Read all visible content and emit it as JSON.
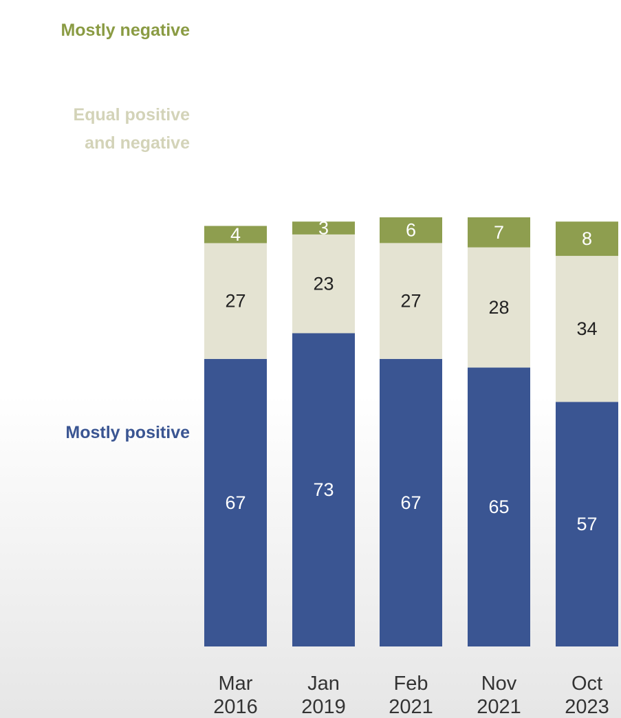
{
  "chart_data": {
    "type": "bar",
    "stacked": true,
    "categories": [
      {
        "line1": "Mar",
        "line2": "2016"
      },
      {
        "line1": "Jan",
        "line2": "2019"
      },
      {
        "line1": "Feb",
        "line2": "2021"
      },
      {
        "line1": "Nov",
        "line2": "2021"
      },
      {
        "line1": "Oct",
        "line2": "2023"
      }
    ],
    "series": [
      {
        "name": "Mostly positive",
        "values": [
          67,
          73,
          67,
          65,
          57
        ],
        "color": "#3a5592",
        "label_color": "#ffffff"
      },
      {
        "name_lines": [
          "Equal positive",
          "and negative"
        ],
        "values": [
          27,
          23,
          27,
          28,
          34
        ],
        "color": "#e4e3d2",
        "label_color": "#222222",
        "legend_color": "#d3d3b8"
      },
      {
        "name": "Mostly negative",
        "values": [
          4,
          3,
          6,
          7,
          8
        ],
        "color": "#8e9e4f",
        "label_color": "#ffffff",
        "legend_color": "#8a9b43"
      }
    ],
    "title": "",
    "xlabel": "",
    "ylabel": "",
    "ylim": [
      0,
      100
    ],
    "grid": false,
    "legend": "left"
  }
}
